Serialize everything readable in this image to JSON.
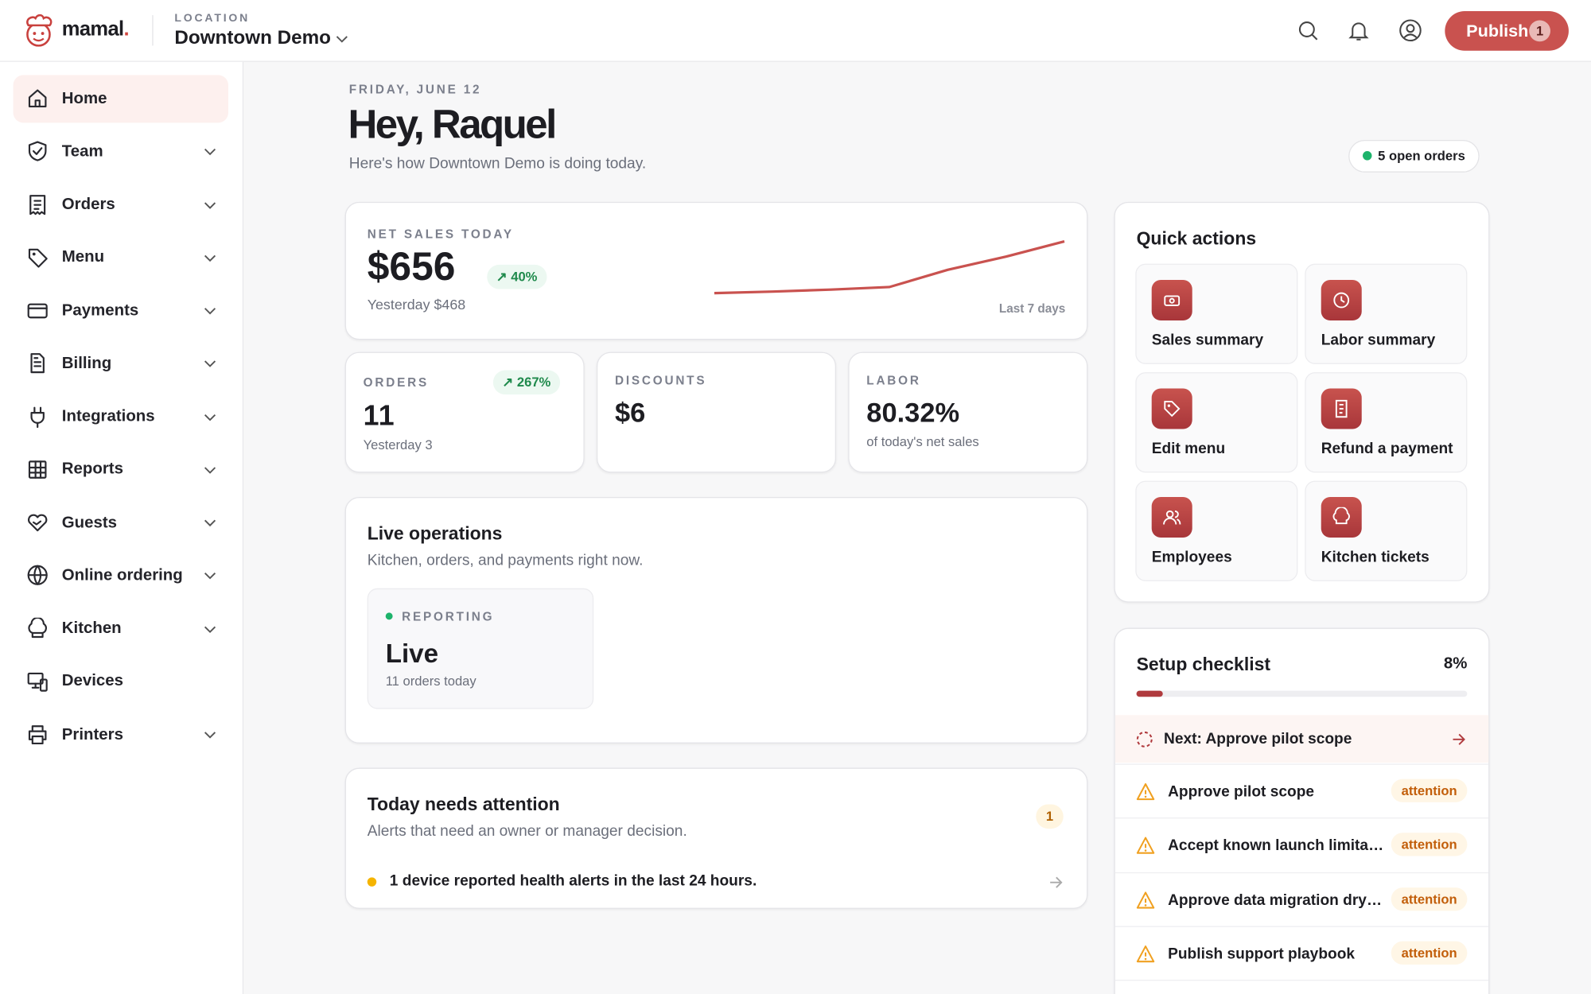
{
  "header": {
    "brand": "mamal",
    "brand_dot": ".",
    "location_label": "LOCATION",
    "location": "Downtown Demo",
    "publish": "Publish",
    "publish_count": "1"
  },
  "sidebar": {
    "items": [
      {
        "label": "Home",
        "chevron": false,
        "active": true
      },
      {
        "label": "Team",
        "chevron": true
      },
      {
        "label": "Orders",
        "chevron": true
      },
      {
        "label": "Menu",
        "chevron": true
      },
      {
        "label": "Payments",
        "chevron": true
      },
      {
        "label": "Billing",
        "chevron": true
      },
      {
        "label": "Integrations",
        "chevron": true
      },
      {
        "label": "Reports",
        "chevron": true
      },
      {
        "label": "Guests",
        "chevron": true
      },
      {
        "label": "Online ordering",
        "chevron": true
      },
      {
        "label": "Kitchen",
        "chevron": true
      },
      {
        "label": "Devices",
        "chevron": false
      },
      {
        "label": "Printers",
        "chevron": true
      }
    ]
  },
  "main": {
    "date": "FRIDAY, JUNE 12",
    "greeting": "Hey, Raquel",
    "subtitle": "Here's how Downtown Demo is doing today.",
    "open_orders": "5 open orders"
  },
  "net_sales": {
    "label": "NET SALES TODAY",
    "value": "$656",
    "change": "40%",
    "yesterday": "Yesterday $468",
    "range": "Last 7 days",
    "trend": [
      2,
      3.5,
      5.5,
      8,
      25,
      38,
      53
    ]
  },
  "stats": [
    {
      "label": "ORDERS",
      "value": "11",
      "change": "267%",
      "sub": "Yesterday 3"
    },
    {
      "label": "DISCOUNTS",
      "value": "$6"
    },
    {
      "label": "LABOR",
      "value": "80.32%",
      "sub": "of today's net sales"
    }
  ],
  "live": {
    "title": "Live operations",
    "subtitle": "Kitchen, orders, and payments right now.",
    "card": {
      "label": "REPORTING",
      "value": "Live",
      "sub": "11 orders today"
    }
  },
  "attention": {
    "title": "Today needs attention",
    "subtitle": "Alerts that need an owner or manager decision.",
    "count": "1",
    "items": [
      "1 device reported health alerts in the last 24 hours."
    ]
  },
  "quick_actions": {
    "title": "Quick actions",
    "items": [
      "Sales summary",
      "Labor summary",
      "Edit menu",
      "Refund a payment",
      "Employees",
      "Kitchen tickets"
    ]
  },
  "checklist": {
    "title": "Setup checklist",
    "progress": {
      "value": 8,
      "label": "8%"
    },
    "next": "Next: Approve pilot scope",
    "items": [
      {
        "label": "Approve pilot scope",
        "status": "attention"
      },
      {
        "label": "Accept known launch limita…",
        "status": "attention"
      },
      {
        "label": "Approve data migration dry…",
        "status": "attention"
      },
      {
        "label": "Publish support playbook",
        "status": "attention"
      }
    ]
  }
}
